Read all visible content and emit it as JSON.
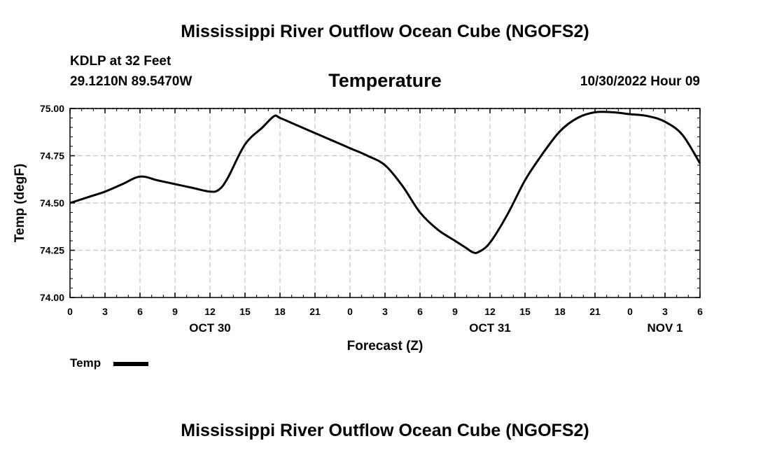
{
  "header": {
    "title": "Mississippi River Outflow Ocean Cube (NGOFS2)",
    "station": "KDLP at 32 Feet",
    "coords": "29.1210N  89.5470W",
    "variable": "Temperature",
    "datetime": "10/30/2022 Hour 09"
  },
  "footer": {
    "title": "Mississippi River Outflow Ocean Cube (NGOFS2)"
  },
  "legend": {
    "label": "Temp",
    "color": "#000000"
  },
  "chart_data": {
    "type": "line",
    "title": "Temperature",
    "xlabel": "Forecast (Z)",
    "ylabel": "Temp (degF)",
    "xlim": [
      0,
      54
    ],
    "ylim": [
      74.0,
      75.0
    ],
    "grid": true,
    "x_tick_values": [
      0,
      3,
      6,
      9,
      12,
      15,
      18,
      21,
      24,
      27,
      30,
      33,
      36,
      39,
      42,
      45,
      48,
      51,
      54
    ],
    "x_tick_labels": [
      "0",
      "3",
      "6",
      "9",
      "12",
      "15",
      "18",
      "21",
      "0",
      "3",
      "6",
      "9",
      "12",
      "15",
      "18",
      "21",
      "0",
      "3",
      "6"
    ],
    "y_ticks": [
      "74.00",
      "74.25",
      "74.50",
      "74.75",
      "75.00"
    ],
    "y_tick_values": [
      74.0,
      74.25,
      74.5,
      74.75,
      75.0
    ],
    "day_labels": [
      {
        "label": "OCT 30",
        "x": 12
      },
      {
        "label": "OCT 31",
        "x": 36
      },
      {
        "label": "NOV 1",
        "x": 51
      }
    ],
    "series": [
      {
        "name": "Temp",
        "x": [
          0,
          1.5,
          3,
          4.5,
          6,
          7.5,
          9,
          10.5,
          12,
          12.75,
          13.5,
          15,
          16.5,
          17.5,
          18,
          19.5,
          21,
          22.5,
          24,
          25.5,
          27,
          28.5,
          30,
          31.5,
          33,
          34,
          34.5,
          35,
          36,
          37.5,
          39,
          40.5,
          42,
          43.5,
          45,
          46.5,
          48,
          49.5,
          51,
          52.5,
          54
        ],
        "values": [
          74.5,
          74.53,
          74.56,
          74.6,
          74.64,
          74.62,
          74.6,
          74.58,
          74.56,
          74.57,
          74.63,
          74.81,
          74.9,
          74.96,
          74.95,
          74.91,
          74.87,
          74.83,
          74.79,
          74.75,
          74.7,
          74.59,
          74.45,
          74.36,
          74.3,
          74.26,
          74.24,
          74.24,
          74.29,
          74.44,
          74.62,
          74.76,
          74.88,
          74.95,
          74.98,
          74.98,
          74.97,
          74.96,
          74.93,
          74.86,
          74.71
        ]
      }
    ]
  }
}
